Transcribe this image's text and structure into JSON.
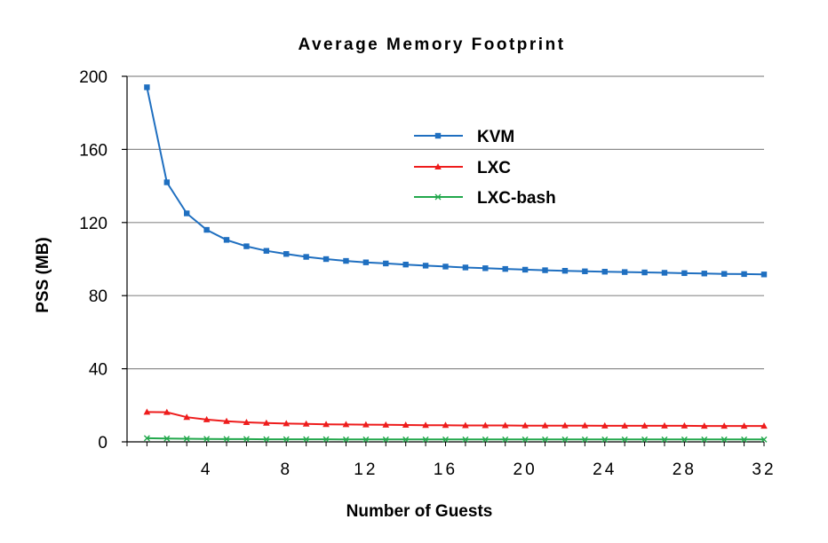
{
  "chart_data": {
    "type": "line",
    "title": "Average Memory Footprint",
    "xlabel": "Number of Guests",
    "ylabel": "PSS (MB)",
    "xlim": [
      0,
      32
    ],
    "ylim": [
      0,
      200
    ],
    "xticks": [
      4,
      8,
      12,
      16,
      20,
      24,
      28,
      32
    ],
    "yticks": [
      0,
      40,
      80,
      120,
      160,
      200
    ],
    "grid": "horizontal",
    "legend_position": "top-right",
    "x": [
      1,
      2,
      3,
      4,
      5,
      6,
      7,
      8,
      9,
      10,
      11,
      12,
      13,
      14,
      15,
      16,
      17,
      18,
      19,
      20,
      21,
      22,
      23,
      24,
      25,
      26,
      27,
      28,
      29,
      30,
      31,
      32
    ],
    "series": [
      {
        "name": "KVM",
        "color": "#1f6fc0",
        "marker": "square",
        "values": [
          194,
          142,
          125,
          116,
          110.5,
          107,
          104.5,
          102.8,
          101.2,
          100,
          99,
          98.2,
          97.6,
          97,
          96.4,
          95.9,
          95.4,
          95,
          94.6,
          94.2,
          93.9,
          93.6,
          93.3,
          93.1,
          92.9,
          92.7,
          92.5,
          92.3,
          92.1,
          91.9,
          91.8,
          91.6
        ]
      },
      {
        "name": "LXC",
        "color": "#ee1c1c",
        "marker": "triangle",
        "values": [
          16.3,
          16.2,
          13.5,
          12.2,
          11.3,
          10.7,
          10.3,
          10,
          9.8,
          9.6,
          9.5,
          9.4,
          9.3,
          9.2,
          9.1,
          9.1,
          9,
          9,
          9,
          8.9,
          8.9,
          8.9,
          8.9,
          8.8,
          8.8,
          8.8,
          8.8,
          8.8,
          8.7,
          8.7,
          8.7,
          8.7
        ]
      },
      {
        "name": "LXC-bash",
        "color": "#22a84c",
        "marker": "x",
        "values": [
          2,
          1.8,
          1.7,
          1.6,
          1.5,
          1.5,
          1.4,
          1.4,
          1.4,
          1.4,
          1.3,
          1.3,
          1.3,
          1.3,
          1.3,
          1.3,
          1.3,
          1.3,
          1.3,
          1.3,
          1.3,
          1.3,
          1.3,
          1.3,
          1.3,
          1.3,
          1.3,
          1.3,
          1.3,
          1.3,
          1.3,
          1.3
        ]
      }
    ]
  }
}
